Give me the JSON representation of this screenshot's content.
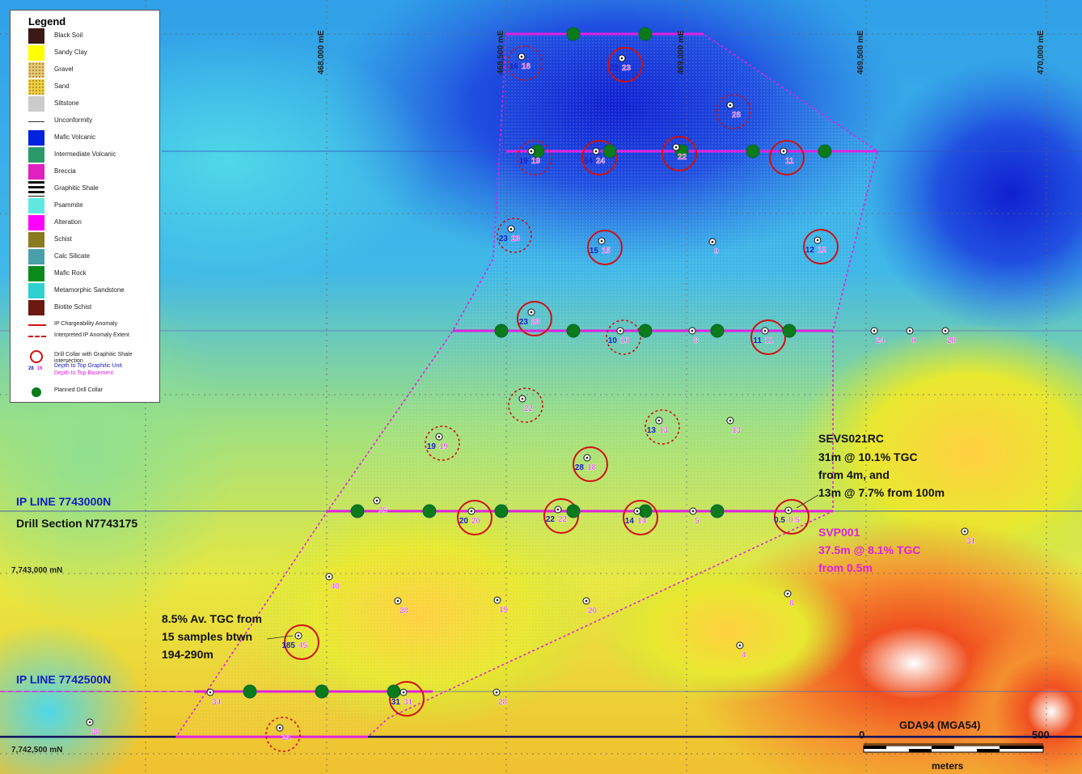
{
  "legend": {
    "title": "Legend",
    "items": [
      {
        "label": "Black Soil",
        "color": "#3a1a14"
      },
      {
        "label": "Sandy Clay",
        "color": "#ffff00"
      },
      {
        "label": "Gravel",
        "color": "#e8c878"
      },
      {
        "label": "Sand",
        "color": "#f0d040"
      },
      {
        "label": "Siltstone",
        "color": "#cccccc"
      },
      {
        "label": "Unconformity",
        "color": "#ffffff"
      },
      {
        "label": "Mafic Volcanic",
        "color": "#0022dd"
      },
      {
        "label": "Intermediate Volcanic",
        "color": "#2a9a6a"
      },
      {
        "label": "Breccia",
        "color": "#e020c0"
      },
      {
        "label": "Graphitic Shale",
        "color": "#111111"
      },
      {
        "label": "Psammite",
        "color": "#60e8e0"
      },
      {
        "label": "Alteration",
        "color": "#ff00ff"
      },
      {
        "label": "Schist",
        "color": "#8a7a20"
      },
      {
        "label": "Calc Silicate",
        "color": "#4aa0a8"
      },
      {
        "label": "Mafic Rock",
        "color": "#0a8a1a"
      },
      {
        "label": "Metamorphic Sandstone",
        "color": "#30d0d0"
      },
      {
        "label": "Biotite Schist",
        "color": "#6a1a10"
      }
    ],
    "symbols": [
      {
        "label": "IP Chargeability Anomaly"
      },
      {
        "label": "Interpreted IP Anomaly Extent"
      },
      {
        "label": "Drill Collar with Graphitic Shale intersection"
      },
      {
        "label": "Depth to Top Graphitic Unit",
        "color": "#2020c0"
      },
      {
        "label": "Depth to Top Basement",
        "color": "#e020e0"
      },
      {
        "label": "Planned Drill Collar"
      }
    ],
    "example_depths": [
      "28",
      "16"
    ]
  },
  "grid": {
    "eastings": [
      "468,000 mE",
      "468,500 mE",
      "469,000 mE",
      "469,500 mE",
      "470,000 mE"
    ],
    "northings": [
      "7,743,000 mN",
      "7,742,500 mN"
    ]
  },
  "annotations": {
    "ip_line_1": "IP LINE 7743000N",
    "drill_section": "Drill Section N7743175",
    "ip_line_2": "IP LINE 7742500N",
    "sevs_title": "SEVS021RC",
    "sevs_line1": "31m @ 10.1% TGC",
    "sevs_line2": "from 4m, and",
    "sevs_line3": "13m @ 7.7% from 100m",
    "svp_title": "SVP001",
    "svp_line1": "37.5m @ 8.1% TGC",
    "svp_line2": "from 0.5m",
    "av_line1": "8.5% Av. TGC from",
    "av_line2": "15 samples btwn",
    "av_line3": "194-290m"
  },
  "scale_bar": {
    "datum": "GDA94 (MGA54)",
    "start": "0",
    "end": "500",
    "unit": "meters"
  },
  "colors": {
    "planned_line": "#e020e0",
    "anomaly": "#d01010",
    "graphitic_depth": "#2020c0",
    "basement_depth": "#e020e0",
    "planned_collar": "#0a7a1a"
  },
  "drill_collars": [
    {
      "id": "c1",
      "blue": "16",
      "pink": "16",
      "ring": "dashed"
    },
    {
      "id": "c2",
      "blue": "23",
      "pink": "23",
      "ring": "solid"
    },
    {
      "id": "c3",
      "blue": "",
      "pink": "26",
      "ring": "dashed"
    },
    {
      "id": "c4",
      "blue": "19",
      "pink": "19",
      "ring": "dashed"
    },
    {
      "id": "c5",
      "blue": "54",
      "pink": "24",
      "ring": "solid"
    },
    {
      "id": "c6",
      "blue": "",
      "pink": "22",
      "ring": "solid"
    },
    {
      "id": "c7",
      "blue": "",
      "pink": "11",
      "ring": "solid"
    },
    {
      "id": "c8",
      "blue": "23",
      "pink": "23",
      "ring": "dashed"
    },
    {
      "id": "c9",
      "blue": "15",
      "pink": "15",
      "ring": "solid"
    },
    {
      "id": "c10",
      "blue": "",
      "pink": "9",
      "ring": "none"
    },
    {
      "id": "c11",
      "blue": "12",
      "pink": "12",
      "ring": "solid"
    },
    {
      "id": "c12",
      "blue": "23",
      "pink": "23",
      "ring": "solid"
    },
    {
      "id": "c13",
      "blue": "10",
      "pink": "10",
      "ring": "dashed"
    },
    {
      "id": "c14",
      "blue": "",
      "pink": "8",
      "ring": "none"
    },
    {
      "id": "c15",
      "blue": "11",
      "pink": "11",
      "ring": "solid"
    },
    {
      "id": "c16",
      "blue": "",
      "pink": "24",
      "ring": "none"
    },
    {
      "id": "c17",
      "blue": "",
      "pink": "0",
      "ring": "none"
    },
    {
      "id": "c18",
      "blue": "",
      "pink": "28",
      "ring": "none"
    },
    {
      "id": "c19",
      "blue": "",
      "pink": "22",
      "ring": "dashed"
    },
    {
      "id": "c20",
      "blue": "13",
      "pink": "13",
      "ring": "dashed"
    },
    {
      "id": "c21",
      "blue": "",
      "pink": "13",
      "ring": "none"
    },
    {
      "id": "c22",
      "blue": "19",
      "pink": "19",
      "ring": "dashed"
    },
    {
      "id": "c23",
      "blue": "28",
      "pink": "18",
      "ring": "solid"
    },
    {
      "id": "c24",
      "blue": "",
      "pink": "35",
      "ring": "none"
    },
    {
      "id": "c25",
      "blue": "20",
      "pink": "20",
      "ring": "solid"
    },
    {
      "id": "c26",
      "blue": "22",
      "pink": "22",
      "ring": "solid"
    },
    {
      "id": "c27",
      "blue": "14",
      "pink": "14",
      "ring": "solid"
    },
    {
      "id": "c28",
      "blue": "",
      "pink": "5",
      "ring": "none"
    },
    {
      "id": "c29",
      "blue": "0.5",
      "pink": "0.5",
      "ring": "solid"
    },
    {
      "id": "c30",
      "blue": "",
      "pink": "31",
      "ring": "none"
    },
    {
      "id": "c31",
      "blue": "",
      "pink": "40",
      "ring": "none"
    },
    {
      "id": "c32",
      "blue": "",
      "pink": "28",
      "ring": "none"
    },
    {
      "id": "c33",
      "blue": "",
      "pink": "19",
      "ring": "none"
    },
    {
      "id": "c34",
      "blue": "",
      "pink": "20",
      "ring": "none"
    },
    {
      "id": "c35",
      "blue": "",
      "pink": "8",
      "ring": "none"
    },
    {
      "id": "c36",
      "blue": "185",
      "pink": "45",
      "ring": "solid"
    },
    {
      "id": "c37",
      "blue": "",
      "pink": "4",
      "ring": "none"
    },
    {
      "id": "c38",
      "blue": "",
      "pink": "34",
      "ring": "none"
    },
    {
      "id": "c39",
      "blue": "31",
      "pink": "31",
      "ring": "solid"
    },
    {
      "id": "c40",
      "blue": "",
      "pink": "28",
      "ring": "none"
    },
    {
      "id": "c41",
      "blue": "",
      "pink": "38",
      "ring": "none"
    },
    {
      "id": "c42",
      "blue": "",
      "pink": "34",
      "ring": "dashed"
    }
  ]
}
